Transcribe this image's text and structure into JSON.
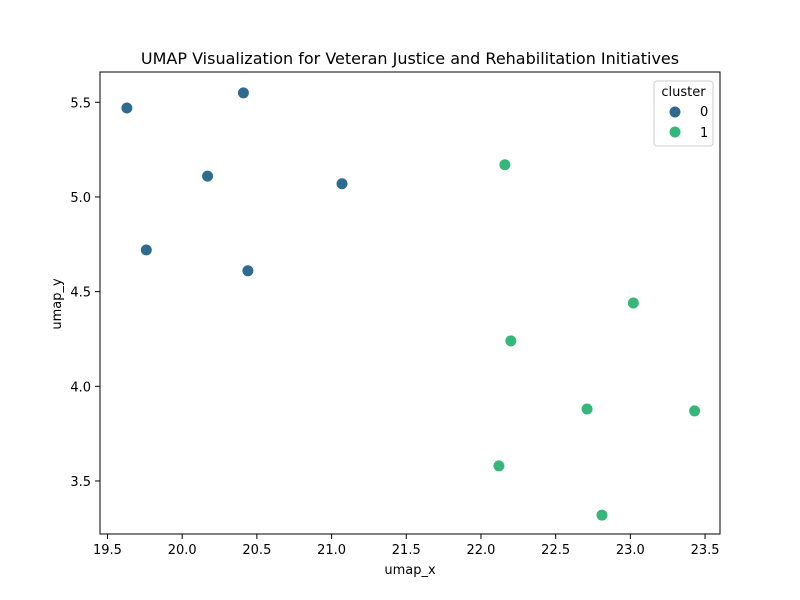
{
  "chart_data": {
    "type": "scatter",
    "title": "UMAP Visualization for Veteran Justice and Rehabilitation Initiatives",
    "xlabel": "umap_x",
    "ylabel": "umap_y",
    "xlim": [
      19.45,
      23.6
    ],
    "ylim": [
      3.22,
      5.66
    ],
    "xticks": [
      19.5,
      20.0,
      20.5,
      21.0,
      21.5,
      22.0,
      22.5,
      23.0,
      23.5
    ],
    "xtick_labels": [
      "19.5",
      "20.0",
      "20.5",
      "21.0",
      "21.5",
      "22.0",
      "22.5",
      "23.0",
      "23.5"
    ],
    "yticks": [
      3.5,
      4.0,
      4.5,
      5.0,
      5.5
    ],
    "ytick_labels": [
      "3.5",
      "4.0",
      "4.5",
      "5.0",
      "5.5"
    ],
    "grid": false,
    "legend": {
      "title": "cluster",
      "placement": "top-right",
      "entries": [
        {
          "label": "0",
          "color": "#2e6b8e"
        },
        {
          "label": "1",
          "color": "#35b779"
        }
      ]
    },
    "series": [
      {
        "name": "0",
        "color": "#2e6b8e",
        "points": [
          {
            "x": 19.63,
            "y": 5.47
          },
          {
            "x": 20.41,
            "y": 5.55
          },
          {
            "x": 20.17,
            "y": 5.11
          },
          {
            "x": 21.07,
            "y": 5.07
          },
          {
            "x": 19.76,
            "y": 4.72
          },
          {
            "x": 20.44,
            "y": 4.61
          }
        ]
      },
      {
        "name": "1",
        "color": "#35b779",
        "points": [
          {
            "x": 22.16,
            "y": 5.17
          },
          {
            "x": 23.02,
            "y": 4.44
          },
          {
            "x": 22.2,
            "y": 4.24
          },
          {
            "x": 22.71,
            "y": 3.88
          },
          {
            "x": 23.43,
            "y": 3.87
          },
          {
            "x": 22.12,
            "y": 3.58
          },
          {
            "x": 22.81,
            "y": 3.32
          }
        ]
      }
    ]
  }
}
